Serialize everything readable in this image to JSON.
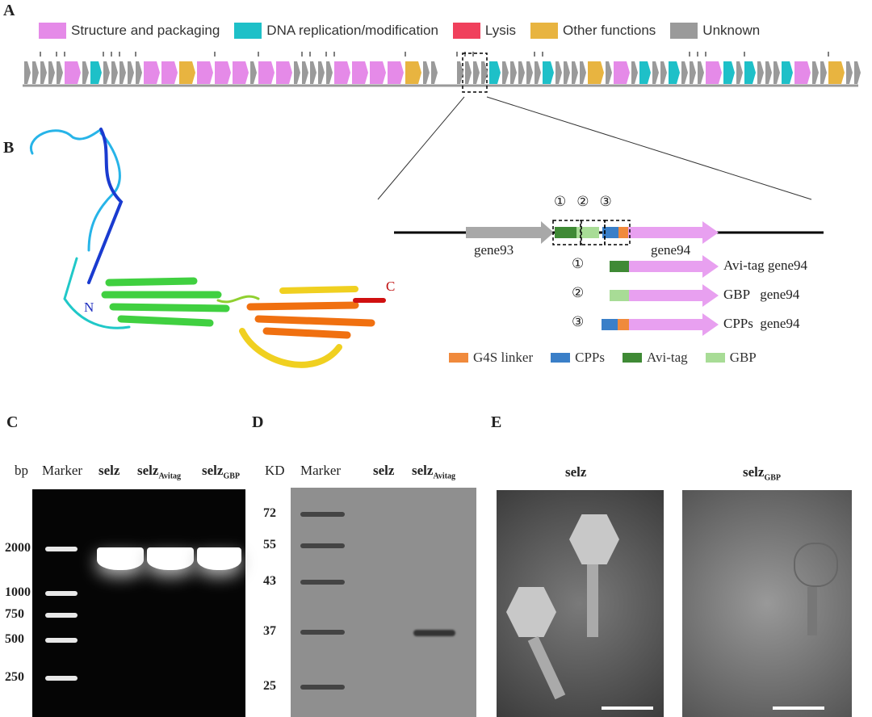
{
  "panels": {
    "a": "A",
    "b": "B",
    "c": "C",
    "d": "D",
    "e": "E"
  },
  "legend": [
    {
      "label": "Structure and packaging",
      "color": "#e58ae8"
    },
    {
      "label": "DNA replication/modification",
      "color": "#1ec0c8"
    },
    {
      "label": "Lysis",
      "color": "#f0405c"
    },
    {
      "label": "Other functions",
      "color": "#e8b440"
    },
    {
      "label": "Unknown",
      "color": "#9a9a9a"
    }
  ],
  "genome_map": {
    "pattern": "UUUUUSUDUUUUUSSOSSSUSSUUUUUSSSSOUU-UUUUDUUUUUDUUUUOUSUDUUDUUUSDUDUUUDSUUOUUUDUUSSLUOOUUUUDOUUUUU"
  },
  "structure": {
    "n_label": "N",
    "c_label": "C"
  },
  "construct": {
    "markers": [
      "①",
      "②",
      "③"
    ],
    "gene93": "gene93",
    "gene94": "gene94",
    "variants": [
      {
        "marker": "①",
        "label": "Avi-tag  gene94"
      },
      {
        "marker": "②",
        "label": "GBP   gene94"
      },
      {
        "marker": "③",
        "label": "CPPs  gene94"
      }
    ],
    "legend": [
      {
        "label": "G4S linker",
        "color": "#f08a3c"
      },
      {
        "label": "CPPs",
        "color": "#3a7fc8"
      },
      {
        "label": "Avi-tag",
        "color": "#3f8a35"
      },
      {
        "label": "GBP",
        "color": "#a8dc96"
      }
    ]
  },
  "gel": {
    "unit": "bp",
    "lanes": [
      "Marker",
      "selz",
      "selz",
      "selz"
    ],
    "subs": [
      "",
      "",
      "Avitag",
      "GBP"
    ],
    "ladder": [
      {
        "label": "2000",
        "y": 680
      },
      {
        "label": "1000",
        "y": 735
      },
      {
        "label": "750",
        "y": 762
      },
      {
        "label": "500",
        "y": 793
      },
      {
        "label": "250",
        "y": 840
      }
    ]
  },
  "western": {
    "unit": "KD",
    "lanes": [
      "Marker",
      "selz",
      "selz"
    ],
    "subs": [
      "",
      "",
      "Avitag"
    ],
    "ladder": [
      {
        "label": "72",
        "y": 637
      },
      {
        "label": "55",
        "y": 676
      },
      {
        "label": "43",
        "y": 721
      },
      {
        "label": "37",
        "y": 783
      },
      {
        "label": "25",
        "y": 851
      }
    ]
  },
  "tem": [
    {
      "title": "selz",
      "sub": ""
    },
    {
      "title": "selz",
      "sub": "GBP"
    }
  ]
}
